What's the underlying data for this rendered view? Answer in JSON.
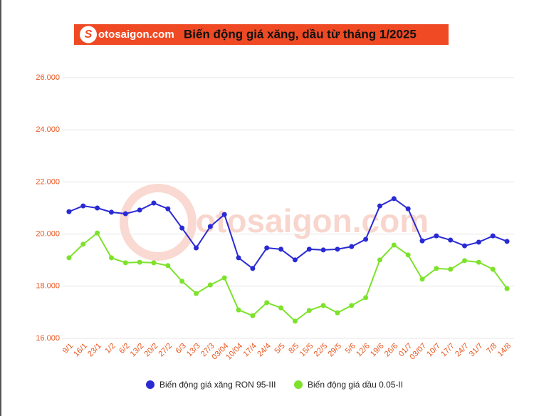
{
  "logo": "otosaigon.com",
  "chart_data": {
    "type": "line",
    "title": "Biến động giá xăng, dầu từ tháng 1/2025",
    "categories": [
      "9/1",
      "16/1",
      "23/1",
      "1/2",
      "6/2",
      "13/2",
      "20/2",
      "27/2",
      "6/3",
      "13/3",
      "27/3",
      "03/04",
      "10/04",
      "17/4",
      "24/4",
      "5/5",
      "8/5",
      "15/5",
      "22/5",
      "29/5",
      "5/6",
      "12/6",
      "19/6",
      "26/6",
      "01/7",
      "03/07",
      "10/7",
      "17/7",
      "24/7",
      "31/7",
      "7/8",
      "14/8"
    ],
    "series": [
      {
        "name": "Biến động giá xăng RON 95-III",
        "color": "#2a2ad4",
        "values": [
          20860,
          21080,
          21000,
          20840,
          20780,
          20920,
          21190,
          20970,
          20230,
          19470,
          20290,
          20750,
          19090,
          18680,
          19470,
          19420,
          19010,
          19420,
          19390,
          19420,
          19520,
          19800,
          21080,
          21360,
          20970,
          19740,
          19930,
          19770,
          19550,
          19690,
          19930,
          19720
        ]
      },
      {
        "name": "Biến động giá dầu 0.05-II",
        "color": "#7ee22c",
        "values": [
          19090,
          19610,
          20040,
          19090,
          18900,
          18920,
          18900,
          18790,
          18190,
          17720,
          18050,
          18320,
          17090,
          16870,
          17370,
          17170,
          16660,
          17070,
          17260,
          16980,
          17260,
          17560,
          19010,
          19580,
          19200,
          18270,
          18680,
          18650,
          18980,
          18920,
          18650,
          17910
        ]
      }
    ],
    "ylim": [
      16000,
      26000
    ],
    "yticks": [
      {
        "value": 16000,
        "label": "16.000"
      },
      {
        "value": 18000,
        "label": "18.000"
      },
      {
        "value": 20000,
        "label": "20.000"
      },
      {
        "value": 22000,
        "label": "22.000"
      },
      {
        "value": 24000,
        "label": "24.000"
      },
      {
        "value": 26000,
        "label": "26.000"
      }
    ],
    "grid": true
  }
}
